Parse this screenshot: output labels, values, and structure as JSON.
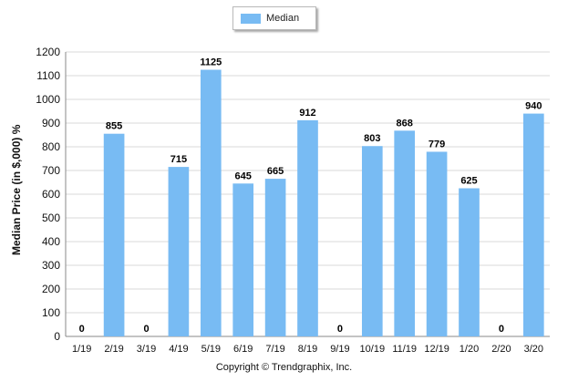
{
  "chart_data": {
    "type": "bar",
    "categories": [
      "1/19",
      "2/19",
      "3/19",
      "4/19",
      "5/19",
      "6/19",
      "7/19",
      "8/19",
      "9/19",
      "10/19",
      "11/19",
      "12/19",
      "1/20",
      "2/20",
      "3/20"
    ],
    "series": [
      {
        "name": "Median",
        "values": [
          0,
          855,
          0,
          715,
          1125,
          645,
          665,
          912,
          0,
          803,
          868,
          779,
          625,
          0,
          940
        ]
      }
    ],
    "data_labels": [
      "0",
      "855",
      "0",
      "715",
      "1125",
      "645",
      "665",
      "912",
      "0",
      "803",
      "868",
      "779",
      "625",
      "0",
      "940"
    ],
    "ylabel": "Median Price (in $,000) %",
    "xlabel": "",
    "ylim": [
      0,
      1200
    ],
    "yticks": [
      0,
      100,
      200,
      300,
      400,
      500,
      600,
      700,
      800,
      900,
      1000,
      1100,
      1200
    ],
    "grid": true,
    "legend_position": "top-center",
    "colors": {
      "bar": "#78bbf3",
      "grid": "#d9d9d9",
      "axis": "#888888"
    }
  },
  "footer": "Copyright © Trendgraphix, Inc."
}
